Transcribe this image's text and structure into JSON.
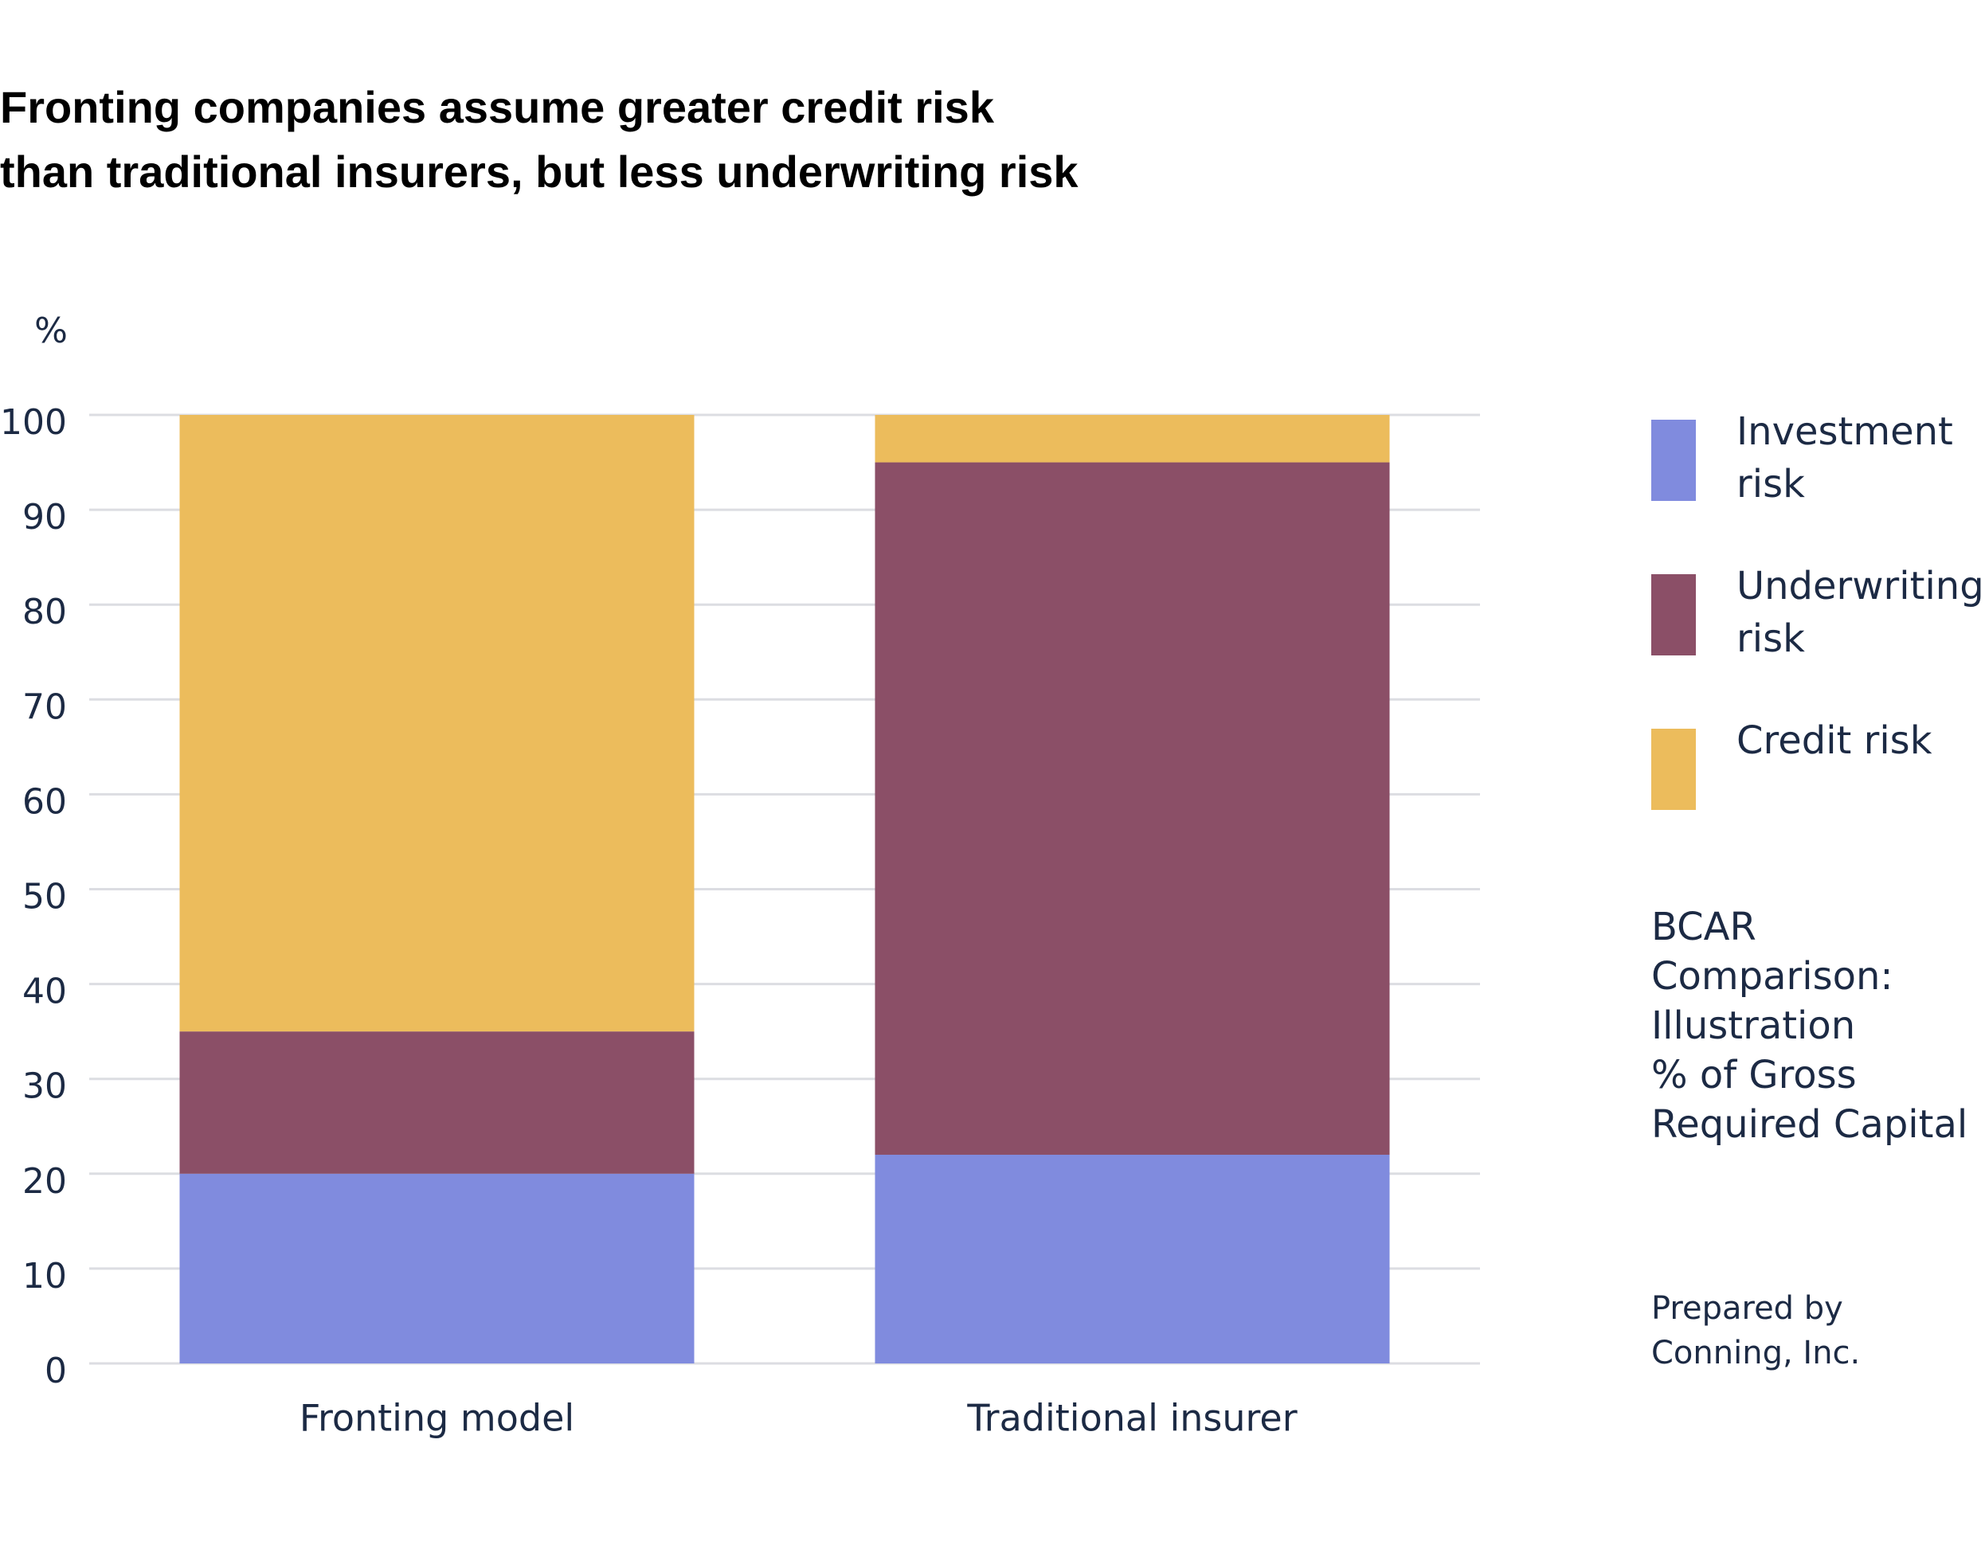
{
  "chart_data": {
    "type": "stacked_bar",
    "title_lines": [
      "Fronting companies assume greater credit risk",
      "than traditional insurers, but less underwriting risk"
    ],
    "y_label": "%",
    "categories": [
      "Fronting model",
      "Traditional insurer"
    ],
    "series": [
      {
        "name": "Investment risk",
        "color": "#808bde",
        "values": [
          20,
          22
        ]
      },
      {
        "name": "Underwriting risk",
        "color": "#8b4f67",
        "values": [
          15,
          73
        ]
      },
      {
        "name": "Credit risk",
        "color": "#ecbc5c",
        "values": [
          65,
          5
        ]
      }
    ],
    "ylim": [
      0,
      100
    ],
    "yticks": [
      0,
      10,
      20,
      30,
      40,
      50,
      60,
      70,
      80,
      90,
      100
    ],
    "grid": true,
    "note_lines": [
      "BCAR",
      "Comparison:",
      "Illustration",
      "% of Gross",
      "Required Capital"
    ],
    "source_lines": [
      "Prepared by",
      "Conning, Inc."
    ]
  }
}
